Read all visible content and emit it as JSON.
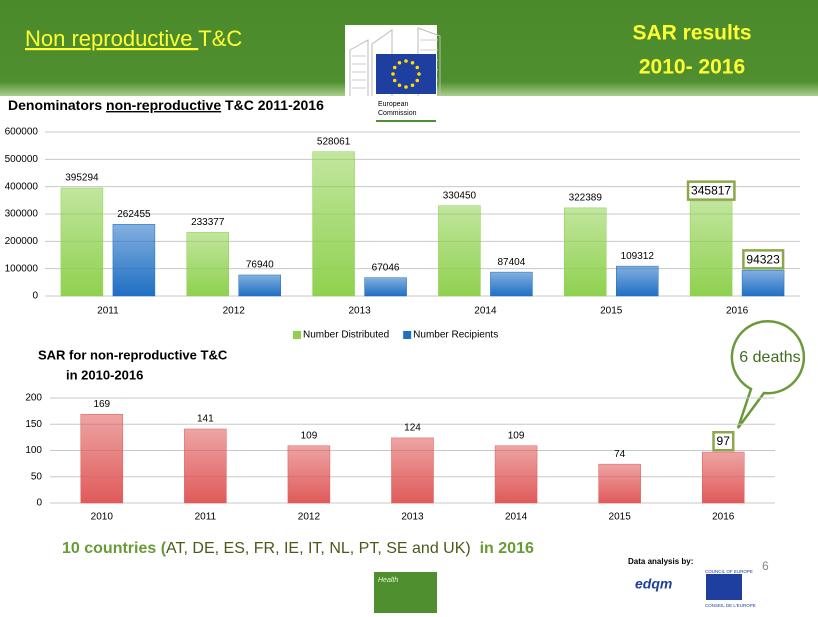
{
  "header": {
    "title_parts": [
      "Non reproductive ",
      "T&C"
    ],
    "right_lines": [
      "SAR results",
      "2010- 2016"
    ],
    "logo_lines": [
      "European",
      "Commission"
    ]
  },
  "chart_data": [
    {
      "type": "bar",
      "title_parts": [
        "Denominators ",
        "non-reproductive",
        " T&C 2011-2016"
      ],
      "categories": [
        "2011",
        "2012",
        "2013",
        "2014",
        "2015",
        "2016"
      ],
      "series": [
        {
          "name": "Number Distributed",
          "color": "#8fd14f",
          "values": [
            395294,
            233377,
            528061,
            330450,
            322389,
            345817
          ]
        },
        {
          "name": "Number Recipients",
          "color": "#1f6fc4",
          "values": [
            262455,
            76940,
            67046,
            87404,
            109312,
            94323
          ]
        }
      ],
      "ylim": [
        0,
        600000
      ],
      "yticks": [
        0,
        100000,
        200000,
        300000,
        400000,
        500000,
        600000
      ],
      "grid": true
    },
    {
      "type": "bar",
      "title_lines": [
        "SAR for non-reproductive T&C",
        "in 2010-2016"
      ],
      "categories": [
        "2010",
        "2011",
        "2012",
        "2013",
        "2014",
        "2015",
        "2016"
      ],
      "values": [
        169,
        141,
        109,
        124,
        109,
        74,
        97
      ],
      "color": "#e05a5a",
      "ylim": [
        0,
        200
      ],
      "yticks": [
        0,
        50,
        100,
        150,
        200
      ],
      "grid": true,
      "annotation": "6 deaths"
    }
  ],
  "footer": {
    "note_parts": [
      "10 countries (",
      "AT, DE, ES, FR, IE, IT, NL, PT, SE and UK)",
      "  in 2016"
    ],
    "box_label": "Health",
    "analysis_label": "Data analysis by:",
    "page_number": "6",
    "logo_texts": [
      "edqm",
      "COUNCIL OF EUROPE",
      "CONSEIL DE L'EUROPE"
    ]
  }
}
